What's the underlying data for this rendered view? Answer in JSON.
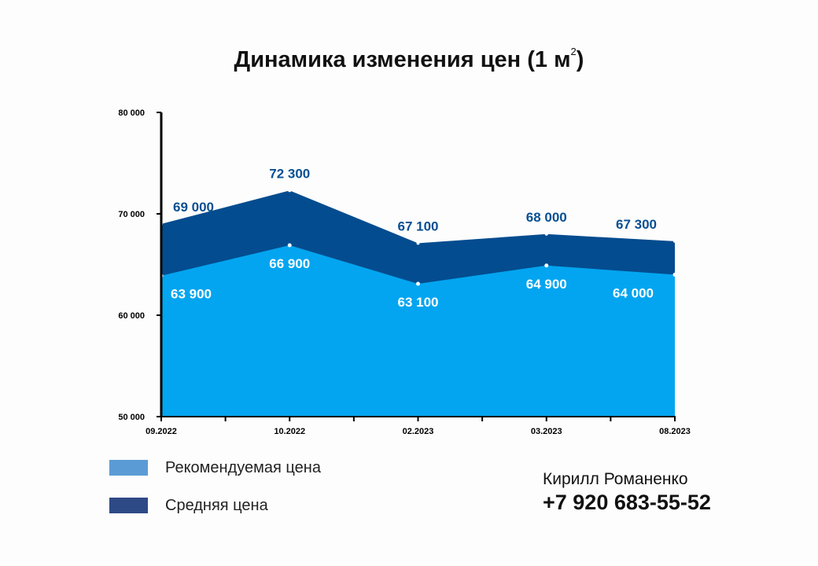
{
  "title": {
    "text": "Динамика изменения цен (1 м",
    "superscript": "2",
    "close": ")"
  },
  "chart_data": {
    "type": "area",
    "title": "Динамика изменения цен (1 м²)",
    "categories": [
      "09.2022",
      "10.2022",
      "02.2023",
      "03.2023",
      "08.2023"
    ],
    "series": [
      {
        "name": "Рекомендуемая цена",
        "values": [
          63900,
          66900,
          63100,
          64900,
          64000
        ],
        "color": "#03a5f0",
        "labels": [
          "63 900",
          "66 900",
          "63 100",
          "64 900",
          "64 000"
        ]
      },
      {
        "name": "Средняя цена",
        "values": [
          69000,
          72300,
          67100,
          68000,
          67300
        ],
        "color": "#034c8f",
        "labels": [
          "69 000",
          "72 300",
          "67 100",
          "68 000",
          "67 300"
        ]
      }
    ],
    "y_ticks": [
      "50 000",
      "60 000",
      "70 000",
      "80 000"
    ],
    "y_tick_values": [
      50000,
      60000,
      70000,
      80000
    ],
    "ylim": [
      50000,
      80000
    ],
    "grid": false,
    "legend_position": "bottom-left"
  },
  "legend": {
    "items": [
      {
        "label": "Рекомендуемая цена",
        "color": "#5b9bd5"
      },
      {
        "label": "Средняя цена",
        "color": "#2e4a86"
      }
    ]
  },
  "contact": {
    "name": "Кирилл Романенко",
    "phone": "+7 920 683-55-52"
  }
}
